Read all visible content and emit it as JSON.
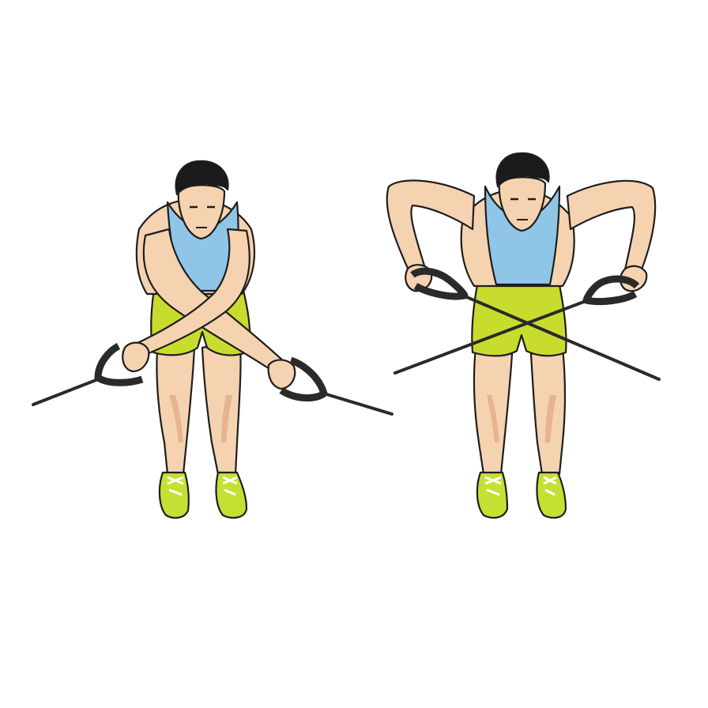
{
  "illustration": {
    "figures": [
      {
        "pose": "arms-crossed-start",
        "icon": "cable-rear-delt-fly-start-icon"
      },
      {
        "pose": "arms-extended-finish",
        "icon": "cable-rear-delt-fly-finish-icon"
      }
    ],
    "colors": {
      "background": "#ffffff",
      "skin": "#f5d3b0",
      "skin_shade": "#e7b48f",
      "tank_top": "#8fc6e8",
      "shorts": "#c8dc2e",
      "shoes": "#c5e033",
      "hair": "#1a1a1a",
      "cable": "#2a2a2a",
      "outline": "#1e1e1e"
    }
  }
}
